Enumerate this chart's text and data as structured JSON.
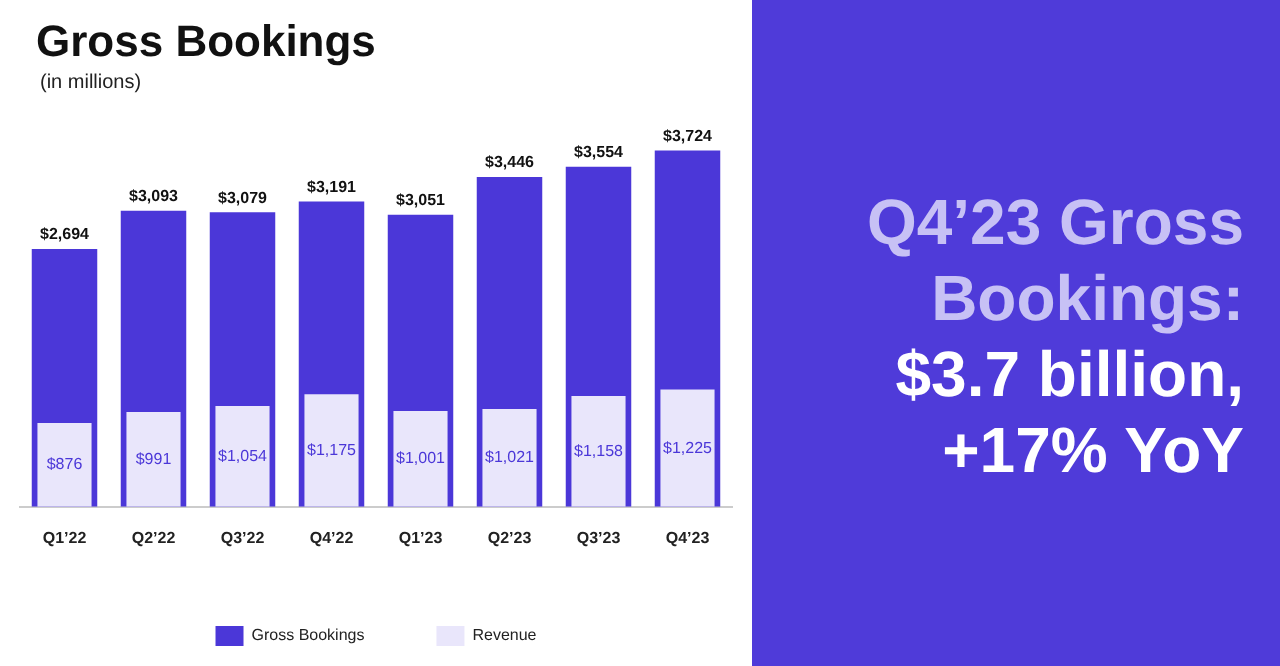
{
  "chart_data": {
    "type": "bar",
    "title": "Gross Bookings",
    "subtitle": "(in millions)",
    "categories": [
      "Q1’22",
      "Q2’22",
      "Q3’22",
      "Q4’22",
      "Q1’23",
      "Q2’23",
      "Q3’23",
      "Q4’23"
    ],
    "series": [
      {
        "name": "Gross Bookings",
        "color": "#4b37d8",
        "values": [
          2694,
          3093,
          3079,
          3191,
          3051,
          3446,
          3554,
          3724
        ],
        "value_labels": [
          "$2,694",
          "$3,093",
          "$3,079",
          "$3,191",
          "$3,051",
          "$3,446",
          "$3,554",
          "$3,724"
        ]
      },
      {
        "name": "Revenue",
        "color": "#e9e6fb",
        "values": [
          876,
          991,
          1054,
          1175,
          1001,
          1021,
          1158,
          1225
        ],
        "value_labels": [
          "$876",
          "$991",
          "$1,054",
          "$1,175",
          "$1,001",
          "$1,021",
          "$1,158",
          "$1,225"
        ]
      }
    ],
    "legend": "bottom",
    "annotations": [
      "Q4’23 Gross Bookings:",
      "$3.7 billion, +17% YoY"
    ]
  }
}
